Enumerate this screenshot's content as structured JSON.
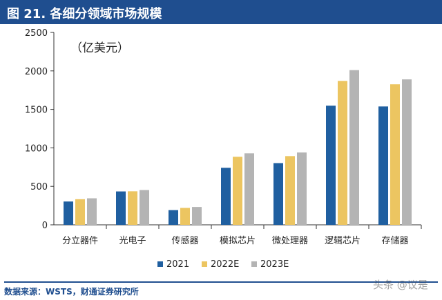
{
  "header": {
    "title": "图 21. 各细分领域市场规模"
  },
  "footer": {
    "source": "数据来源：WSTS，财通证券研究所",
    "watermark": "头条 @议是"
  },
  "colors": {
    "title_bg": "#1f4e8f",
    "series_2021": "#1f5fa0",
    "series_2022E": "#ecc561",
    "series_2023E": "#b4b4b4"
  },
  "chart_data": {
    "type": "bar",
    "title": "",
    "unit_label": "（亿美元）",
    "categories": [
      "分立器件",
      "光电子",
      "传感器",
      "模拟芯片",
      "微处理器",
      "逻辑芯片",
      "存储器"
    ],
    "series": [
      {
        "name": "2021",
        "color": "#1f5fa0",
        "values": [
          303,
          434,
          191,
          741,
          802,
          1548,
          1538
        ]
      },
      {
        "name": "2022E",
        "color": "#ecc561",
        "values": [
          333,
          436,
          220,
          884,
          893,
          1870,
          1826
        ]
      },
      {
        "name": "2023E",
        "color": "#b4b4b4",
        "values": [
          345,
          452,
          232,
          929,
          940,
          2010,
          1890
        ]
      }
    ],
    "ylim": [
      0,
      2500
    ],
    "yticks": [
      0,
      500,
      1000,
      1500,
      2000,
      2500
    ],
    "grid": false,
    "legend": "bottom-center"
  }
}
